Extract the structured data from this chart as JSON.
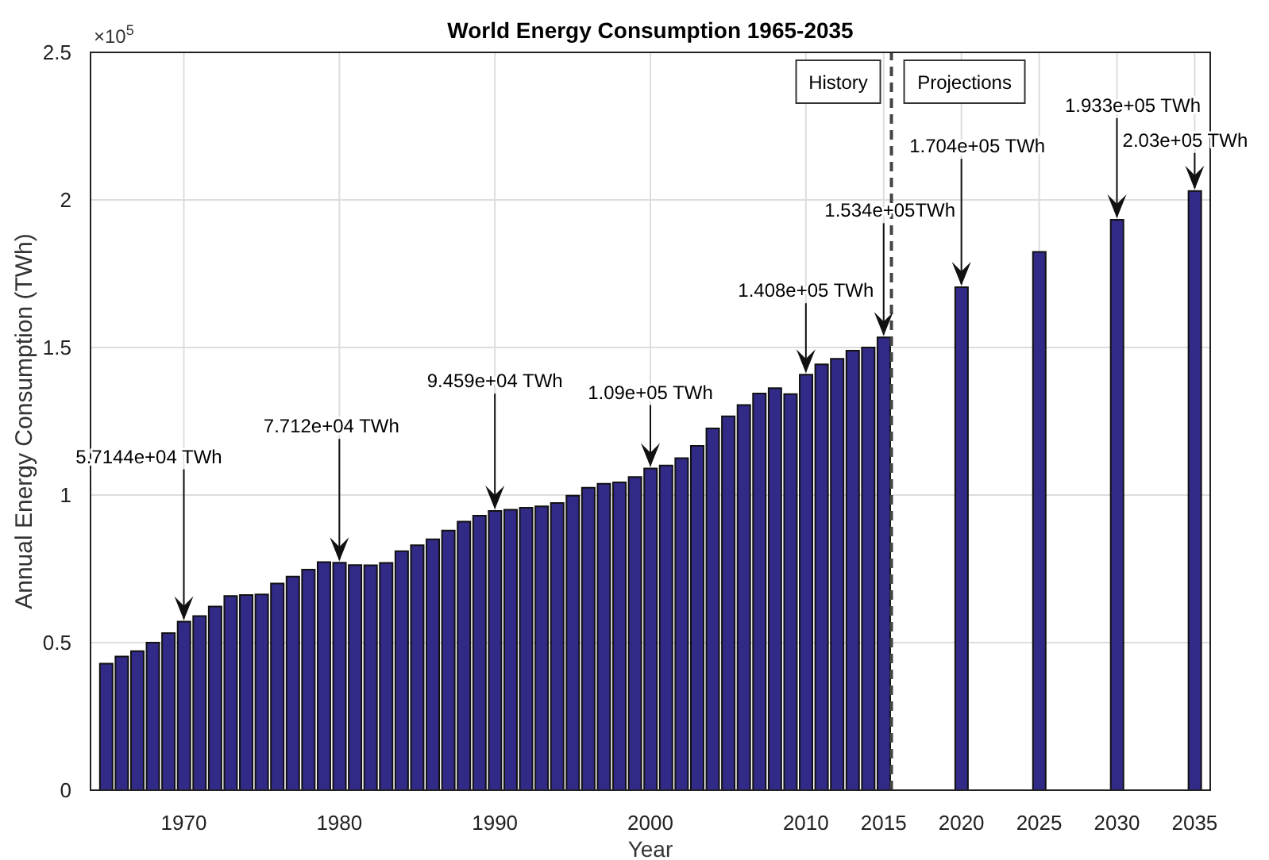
{
  "chart_data": {
    "type": "bar",
    "title": "World Energy Consumption 1965-2035",
    "xlabel": "Year",
    "ylabel": "Annual Energy Consumption (TWh)",
    "x": [
      1965,
      1966,
      1967,
      1968,
      1969,
      1970,
      1971,
      1972,
      1973,
      1974,
      1975,
      1976,
      1977,
      1978,
      1979,
      1980,
      1981,
      1982,
      1983,
      1984,
      1985,
      1986,
      1987,
      1988,
      1989,
      1990,
      1991,
      1992,
      1993,
      1994,
      1995,
      1996,
      1997,
      1998,
      1999,
      2000,
      2001,
      2002,
      2003,
      2004,
      2005,
      2006,
      2007,
      2008,
      2009,
      2010,
      2011,
      2012,
      2013,
      2014,
      2015,
      2020,
      2025,
      2030,
      2035
    ],
    "values": [
      0.429,
      0.453,
      0.471,
      0.5,
      0.532,
      0.571,
      0.59,
      0.622,
      0.658,
      0.661,
      0.663,
      0.7,
      0.724,
      0.747,
      0.773,
      0.771,
      0.763,
      0.762,
      0.77,
      0.81,
      0.83,
      0.85,
      0.88,
      0.91,
      0.93,
      0.946,
      0.95,
      0.957,
      0.962,
      0.973,
      0.998,
      1.025,
      1.038,
      1.043,
      1.061,
      1.09,
      1.1,
      1.125,
      1.167,
      1.226,
      1.267,
      1.305,
      1.344,
      1.362,
      1.342,
      1.408,
      1.443,
      1.462,
      1.489,
      1.5,
      1.534,
      1.704,
      1.824,
      1.933,
      2.03
    ],
    "color": "#312a87",
    "xlim": [
      1964,
      2036
    ],
    "xticks": [
      1970,
      1980,
      1990,
      2000,
      2010,
      2015,
      2020,
      2025,
      2030,
      2035
    ],
    "ylim": [
      0,
      2.5
    ],
    "yticks": [
      0,
      0.5,
      1,
      1.5,
      2,
      2.5
    ],
    "grid": true,
    "ref_lines": [
      {
        "axis": "x",
        "value": 2015.5,
        "line_style": "dashed",
        "color": "#444444"
      }
    ],
    "annotations": [
      "×10$^{5}$",
      "History",
      "Projections",
      {
        "text": "5.7144e+04 TWh",
        "x": 1970,
        "y": 0.571
      },
      {
        "text": "7.712e+04 TWh",
        "x": 1980,
        "y": 0.771
      },
      {
        "text": "9.459e+04 TWh",
        "x": 1990,
        "y": 0.946
      },
      {
        "text": "1.09e+05 TWh",
        "x": 2000,
        "y": 1.09
      },
      {
        "text": "1.408e+05 TWh",
        "x": 2010,
        "y": 1.408
      },
      {
        "text": "1.534e+05TWh",
        "x": 2015,
        "y": 1.534
      },
      {
        "text": "1.704e+05 TWh",
        "x": 2020,
        "y": 1.704
      },
      {
        "text": "1.933e+05 TWh",
        "x": 2030,
        "y": 1.933
      },
      {
        "text": "2.03e+05 TWh",
        "x": 2035,
        "y": 2.03
      }
    ]
  }
}
